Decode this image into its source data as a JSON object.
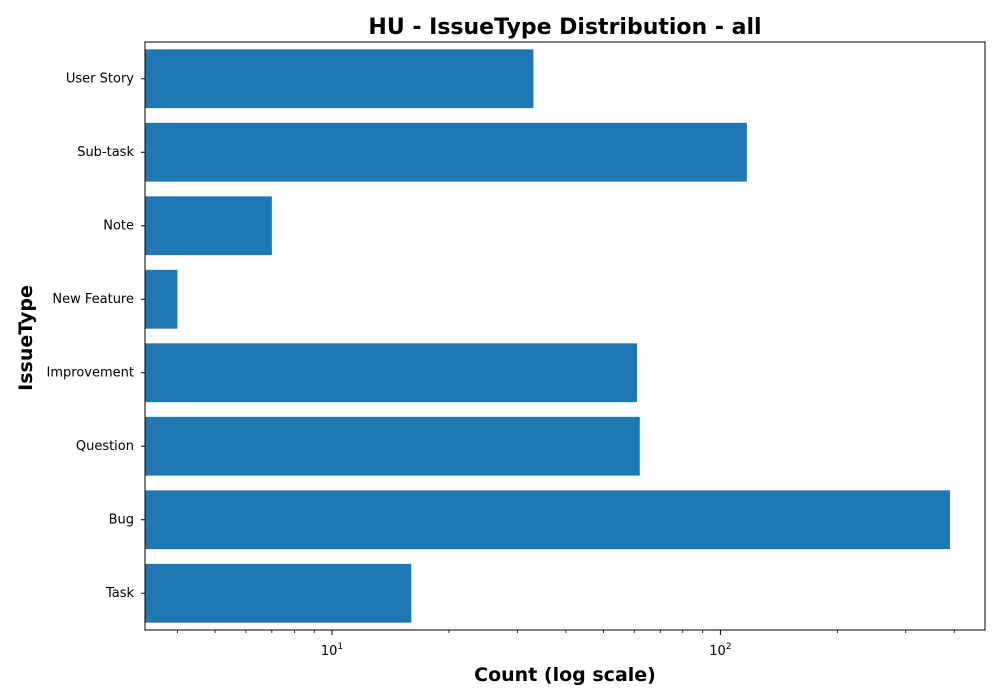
{
  "chart_data": {
    "type": "bar",
    "orientation": "horizontal",
    "title": "HU - IssueType Distribution - all",
    "xlabel": "Count (log scale)",
    "ylabel": "IssueType",
    "xscale": "log",
    "xlim": [
      3.3,
      480
    ],
    "categories": [
      "Task",
      "Bug",
      "Question",
      "Improvement",
      "New Feature",
      "Note",
      "Sub-task",
      "User Story"
    ],
    "values": [
      16,
      390,
      62,
      61,
      4,
      7,
      117,
      33
    ],
    "x_ticks": [
      {
        "value": 10,
        "base": "10",
        "exp": "1"
      },
      {
        "value": 100,
        "base": "10",
        "exp": "2"
      }
    ],
    "bar_color": "#1f77b4",
    "grid": false,
    "legend": "none"
  }
}
